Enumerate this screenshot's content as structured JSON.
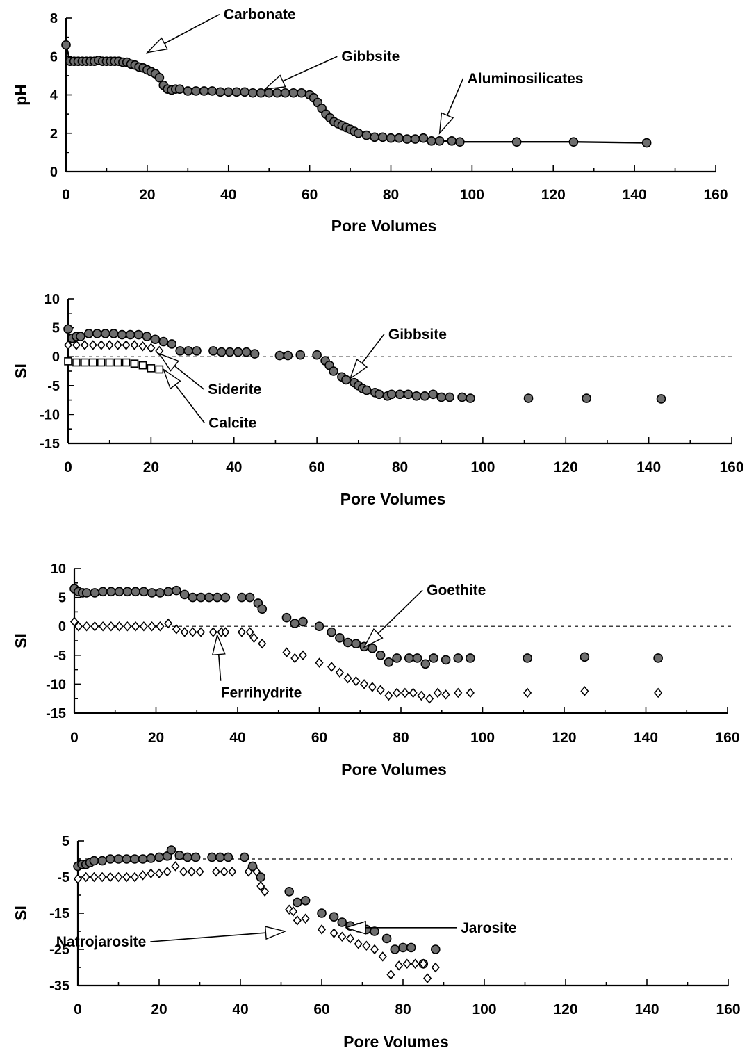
{
  "chart_data": [
    {
      "type": "scatter",
      "xlabel": "Pore Volumes",
      "ylabel": "pH",
      "xlim": [
        0,
        160
      ],
      "ylim": [
        0,
        8
      ],
      "xticks": [
        "0",
        "20",
        "40",
        "60",
        "80",
        "100",
        "120",
        "140",
        "160"
      ],
      "yticks": [
        "0",
        "2",
        "4",
        "6",
        "8"
      ],
      "reference_line": null,
      "connected": true,
      "annotations": [
        {
          "text": "Carbonate",
          "target": [
            20,
            6.2
          ]
        },
        {
          "text": "Gibbsite",
          "target": [
            49,
            4.3
          ]
        },
        {
          "text": "Aluminosilicates",
          "target": [
            92,
            2.0
          ]
        }
      ],
      "series": [
        {
          "marker": "filled-circle",
          "x": [
            0,
            1,
            2,
            3,
            4,
            5,
            6,
            7,
            8,
            9,
            10,
            11,
            12,
            13,
            14,
            15,
            16,
            17,
            18,
            19,
            20,
            21,
            22,
            23,
            24,
            25,
            26,
            27,
            28,
            30,
            32,
            34,
            36,
            38,
            40,
            42,
            44,
            46,
            48,
            50,
            52,
            54,
            56,
            58,
            60,
            61,
            62,
            63,
            64,
            65,
            66,
            67,
            68,
            69,
            70,
            71,
            72,
            74,
            76,
            78,
            80,
            82,
            84,
            86,
            88,
            90,
            92,
            95,
            97,
            111,
            125,
            143
          ],
          "y": [
            6.6,
            5.75,
            5.75,
            5.75,
            5.75,
            5.75,
            5.75,
            5.75,
            5.8,
            5.75,
            5.75,
            5.75,
            5.75,
            5.75,
            5.7,
            5.7,
            5.6,
            5.55,
            5.45,
            5.4,
            5.3,
            5.2,
            5.1,
            4.9,
            4.5,
            4.3,
            4.25,
            4.3,
            4.3,
            4.2,
            4.2,
            4.2,
            4.2,
            4.15,
            4.15,
            4.15,
            4.15,
            4.1,
            4.1,
            4.1,
            4.1,
            4.1,
            4.1,
            4.1,
            4.0,
            3.85,
            3.6,
            3.3,
            3.0,
            2.8,
            2.6,
            2.5,
            2.4,
            2.3,
            2.2,
            2.1,
            2.0,
            1.9,
            1.8,
            1.8,
            1.75,
            1.75,
            1.7,
            1.7,
            1.75,
            1.6,
            1.6,
            1.6,
            1.55,
            1.55,
            1.55,
            1.5
          ]
        }
      ]
    },
    {
      "type": "scatter",
      "xlabel": "Pore Volumes",
      "ylabel": "SI",
      "xlim": [
        0,
        160
      ],
      "ylim": [
        -15,
        10
      ],
      "xticks": [
        "0",
        "20",
        "40",
        "60",
        "80",
        "100",
        "120",
        "140",
        "160"
      ],
      "yticks": [
        "-15",
        "-10",
        "-5",
        "0",
        "5",
        "10"
      ],
      "reference_line": 0,
      "connected": false,
      "annotations": [
        {
          "text": "Gibbsite",
          "target": [
            68,
            -3.8
          ]
        },
        {
          "text": "Siderite",
          "target": [
            22,
            0.5
          ]
        },
        {
          "text": "Calcite",
          "target": [
            23,
            -2.2
          ]
        }
      ],
      "series": [
        {
          "marker": "filled-circle",
          "x": [
            0,
            1,
            2,
            3,
            5,
            7,
            9,
            11,
            13,
            15,
            17,
            19,
            21,
            23,
            25,
            27,
            29,
            31,
            35,
            37,
            39,
            41,
            43,
            45,
            51,
            53,
            56,
            60,
            62,
            63,
            64,
            66,
            67,
            69,
            70,
            71,
            72,
            74,
            75,
            77,
            78,
            80,
            82,
            84,
            86,
            88,
            90,
            92,
            95,
            97,
            111,
            125,
            143
          ],
          "y": [
            4.8,
            3.2,
            3.5,
            3.5,
            4.0,
            4.0,
            4.0,
            4.0,
            3.8,
            3.8,
            3.8,
            3.5,
            3.0,
            2.6,
            2.2,
            1.0,
            1.0,
            1.0,
            1.0,
            0.8,
            0.8,
            0.8,
            0.8,
            0.5,
            0.2,
            0.2,
            0.3,
            0.3,
            -0.7,
            -1.5,
            -2.5,
            -3.5,
            -4.0,
            -4.5,
            -5.0,
            -5.5,
            -5.8,
            -6.2,
            -6.5,
            -6.8,
            -6.5,
            -6.5,
            -6.5,
            -6.8,
            -6.8,
            -6.5,
            -7.0,
            -7.0,
            -7.0,
            -7.2,
            -7.2,
            -7.2,
            -7.3
          ]
        },
        {
          "marker": "open-diamond",
          "x": [
            0,
            2,
            4,
            6,
            8,
            10,
            12,
            14,
            16,
            18,
            20,
            22
          ],
          "y": [
            2.0,
            2.0,
            2.0,
            2.0,
            2.0,
            2.0,
            2.0,
            2.0,
            2.0,
            1.8,
            1.5,
            1.0
          ]
        },
        {
          "marker": "open-square",
          "x": [
            0,
            2,
            4,
            6,
            8,
            10,
            12,
            14,
            16,
            18,
            20,
            22
          ],
          "y": [
            -0.8,
            -1.0,
            -1.0,
            -1.0,
            -1.0,
            -1.0,
            -1.0,
            -1.0,
            -1.2,
            -1.5,
            -2.0,
            -2.2
          ]
        }
      ]
    },
    {
      "type": "scatter",
      "xlabel": "Pore Volumes",
      "ylabel": "SI",
      "xlim": [
        0,
        160
      ],
      "ylim": [
        -15,
        10
      ],
      "xticks": [
        "0",
        "20",
        "40",
        "60",
        "80",
        "100",
        "120",
        "140",
        "160"
      ],
      "yticks": [
        "-15",
        "-10",
        "-5",
        "0",
        "5",
        "10"
      ],
      "reference_line": 0,
      "connected": false,
      "annotations": [
        {
          "text": "Goethite",
          "target": [
            71,
            -3.6
          ]
        },
        {
          "text": "Ferrihydrite",
          "target": [
            35,
            -1.5
          ]
        }
      ],
      "series": [
        {
          "marker": "filled-circle",
          "x": [
            0,
            1,
            2,
            3,
            5,
            7,
            9,
            11,
            13,
            15,
            17,
            19,
            21,
            23,
            25,
            27,
            29,
            31,
            33,
            35,
            37,
            41,
            43,
            45,
            46,
            52,
            54,
            56,
            60,
            63,
            65,
            67,
            69,
            71,
            73,
            75,
            77,
            79,
            82,
            84,
            86,
            88,
            91,
            94,
            97,
            111,
            125,
            143
          ],
          "y": [
            6.5,
            6.0,
            5.8,
            5.8,
            5.8,
            6.0,
            6.0,
            6.0,
            6.0,
            6.0,
            6.0,
            5.8,
            5.8,
            6.0,
            6.2,
            5.5,
            5.0,
            5.0,
            5.0,
            5.0,
            5.0,
            5.0,
            5.0,
            4.0,
            3.0,
            1.5,
            0.5,
            0.8,
            0.0,
            -1.0,
            -2.0,
            -2.8,
            -3.0,
            -3.5,
            -3.8,
            -5.0,
            -6.2,
            -5.5,
            -5.5,
            -5.5,
            -6.5,
            -5.5,
            -5.8,
            -5.5,
            -5.5,
            -5.5,
            -5.3,
            -5.5
          ]
        },
        {
          "marker": "open-diamond",
          "x": [
            0,
            1,
            3,
            5,
            7,
            9,
            11,
            13,
            15,
            17,
            19,
            21,
            23,
            25,
            27,
            29,
            31,
            34,
            36,
            37,
            41,
            43,
            44,
            46,
            52,
            54,
            56,
            60,
            63,
            65,
            67,
            69,
            71,
            73,
            75,
            77,
            79,
            81,
            83,
            85,
            87,
            89,
            91,
            94,
            97,
            111,
            125,
            143
          ],
          "y": [
            0.8,
            0.0,
            0.0,
            0.0,
            0.0,
            0.0,
            0.0,
            0.0,
            0.0,
            0.0,
            0.0,
            0.0,
            0.5,
            -0.5,
            -1.0,
            -1.0,
            -1.0,
            -1.0,
            -1.0,
            -1.0,
            -1.0,
            -1.0,
            -2.0,
            -3.0,
            -4.5,
            -5.5,
            -5.0,
            -6.3,
            -7.0,
            -8.0,
            -9.0,
            -9.5,
            -10.0,
            -10.5,
            -11.0,
            -12.0,
            -11.5,
            -11.5,
            -11.5,
            -12.0,
            -12.5,
            -11.5,
            -11.8,
            -11.5,
            -11.5,
            -11.5,
            -11.2,
            -11.5
          ]
        }
      ]
    },
    {
      "type": "scatter",
      "xlabel": "Pore Volumes",
      "ylabel": "SI",
      "xlim": [
        0,
        160
      ],
      "ylim": [
        -35,
        5
      ],
      "xticks": [
        "0",
        "20",
        "40",
        "60",
        "80",
        "100",
        "120",
        "140",
        "160"
      ],
      "yticks": [
        "-35",
        "-25",
        "-15",
        "-5",
        "5"
      ],
      "reference_line": 0,
      "connected": false,
      "annotations": [
        {
          "text": "Jarosite",
          "target": [
            66,
            -19
          ]
        },
        {
          "text": "Natrojarosite",
          "target": [
            51,
            -20
          ]
        }
      ],
      "series": [
        {
          "marker": "filled-circle",
          "x": [
            0,
            1,
            2,
            3,
            4,
            6,
            8,
            10,
            12,
            14,
            16,
            18,
            20,
            22,
            23,
            25,
            27,
            29,
            33,
            35,
            37,
            41,
            43,
            45,
            52,
            54,
            56,
            60,
            63,
            65,
            67,
            69,
            71,
            73,
            76,
            78,
            80,
            82,
            85,
            88
          ],
          "y": [
            -2.0,
            -1.5,
            -1.5,
            -1.0,
            -0.5,
            -0.5,
            0.0,
            0.0,
            0.0,
            0.0,
            0.0,
            0.2,
            0.5,
            0.8,
            2.5,
            1.0,
            0.5,
            0.5,
            0.5,
            0.5,
            0.5,
            0.5,
            -2.0,
            -5.0,
            -9.0,
            -12.0,
            -11.5,
            -15.0,
            -16.0,
            -17.5,
            -18.5,
            -19.0,
            -19.5,
            -20.0,
            -22.0,
            -25.0,
            -24.5,
            -24.5,
            -29.0,
            -25.0
          ]
        },
        {
          "marker": "open-diamond",
          "x": [
            0,
            2,
            4,
            6,
            8,
            10,
            12,
            14,
            16,
            18,
            20,
            22,
            24,
            26,
            28,
            30,
            34,
            36,
            38,
            42,
            44,
            45,
            46,
            52,
            53,
            54,
            56,
            60,
            63,
            65,
            67,
            69,
            71,
            73,
            75,
            77,
            79,
            81,
            83,
            85,
            86,
            88
          ],
          "y": [
            -5.5,
            -5.0,
            -5.0,
            -5.0,
            -5.0,
            -5.0,
            -5.0,
            -5.0,
            -4.5,
            -4.0,
            -4.0,
            -3.5,
            -2.0,
            -3.5,
            -3.5,
            -3.5,
            -3.5,
            -3.5,
            -3.5,
            -3.5,
            -3.5,
            -7.5,
            -9.0,
            -14.0,
            -14.5,
            -17.0,
            -16.5,
            -19.5,
            -20.5,
            -21.5,
            -22.0,
            -23.5,
            -24.0,
            -25.0,
            -27.0,
            -32.0,
            -29.5,
            -29.0,
            -29.0,
            -29.0,
            -33.0,
            -30.0
          ]
        }
      ]
    }
  ]
}
